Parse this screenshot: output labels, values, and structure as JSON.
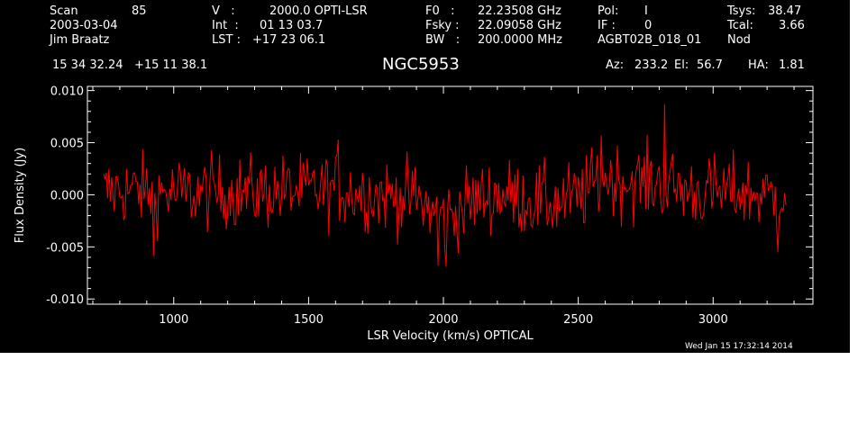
{
  "header": {
    "scan_label": "Scan",
    "scan_value": "85",
    "date": "2003-03-04",
    "observer": "Jim Braatz",
    "v_label": "V   :",
    "v_value": "2000.0 OPTI-LSR",
    "int_label": "Int  :",
    "int_value": "01 13 03.7",
    "lst_label": "LST :",
    "lst_value": "+17 23 06.1",
    "f0_label": "F0   :",
    "f0_value": "22.23508 GHz",
    "fsky_label": "Fsky :",
    "fsky_value": "22.09058 GHz",
    "bw_label": "BW   :",
    "bw_value": "200.0000 MHz",
    "pol_label": "Pol:",
    "pol_value": "I",
    "if_label": "IF :",
    "if_value": "0",
    "project": "AGBT02B_018_01",
    "tsys_label": "Tsys:",
    "tsys_value": "38.47",
    "tcal_label": "Tcal:",
    "tcal_value": "3.66",
    "procedure": "Nod",
    "coords": "15 34 32.24   +15 11 38.1",
    "source": "NGC5953",
    "az_label": "Az:",
    "az_value": "233.2",
    "el_label": "El:",
    "el_value": "56.7",
    "ha_label": "HA:",
    "ha_value": "1.81"
  },
  "timestamp": "Wed Jan 15 17:32:14 2014",
  "colors": {
    "background": "#000000",
    "axes": "#ffffff",
    "trace": "#ff0000"
  },
  "chart_data": {
    "type": "line",
    "xlabel": "LSR Velocity (km/s) OPTICAL",
    "ylabel": "Flux Density (Jy)",
    "xlim": [
      680,
      3370
    ],
    "ylim": [
      -0.0105,
      0.0104
    ],
    "x_ticks": [
      1000,
      1500,
      2000,
      2500,
      3000
    ],
    "x_tick_labels": [
      "1000",
      "1500",
      "2000",
      "2500",
      "3000"
    ],
    "y_ticks": [
      -0.01,
      -0.005,
      0.0,
      0.005,
      0.01
    ],
    "y_tick_labels": [
      "-0.010",
      "-0.005",
      "0.000",
      "0.005",
      "0.010"
    ],
    "grid": false,
    "series": [
      {
        "color": "#ff0000",
        "x_start": 740,
        "x_step": 10,
        "noise_rms": 0.0018,
        "x": [
          740,
          800,
          900,
          1000,
          1100,
          1200,
          1300,
          1400,
          1500,
          1600,
          1700,
          1800,
          1900,
          1950,
          2000,
          2050,
          2100,
          2200,
          2300,
          2400,
          2500,
          2550,
          2600,
          2700,
          2800,
          2900,
          3000,
          3100,
          3200,
          3270
        ],
        "y": [
          0.0002,
          0.0005,
          0.0003,
          0.0001,
          0.0002,
          0.0003,
          0.0002,
          0.0004,
          0.0003,
          0.0006,
          0.0002,
          -0.0001,
          -0.0003,
          -0.0015,
          -0.0022,
          -0.0016,
          -0.0007,
          0.0001,
          -0.0004,
          -0.0008,
          -0.0003,
          0.0008,
          0.0016,
          0.0012,
          0.0012,
          0.0004,
          0.0002,
          0.0003,
          -0.0001,
          0.0001
        ],
        "spikes": [
          {
            "x": 2820,
            "y": 0.0087
          },
          {
            "x": 2585,
            "y": 0.0057
          },
          {
            "x": 2010,
            "y": -0.0069
          },
          {
            "x": 1980,
            "y": -0.0068
          },
          {
            "x": 925,
            "y": -0.0059
          },
          {
            "x": 3240,
            "y": -0.0055
          },
          {
            "x": 1610,
            "y": 0.0053
          }
        ]
      }
    ]
  }
}
